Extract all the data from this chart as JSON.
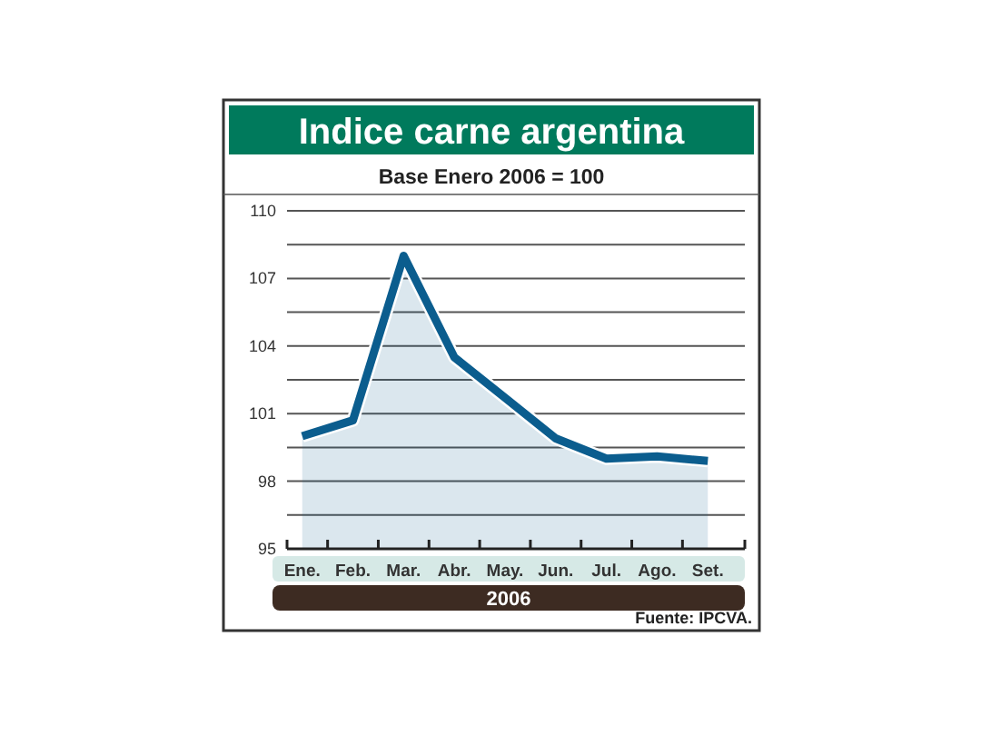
{
  "chart_data": {
    "type": "area",
    "title": "Indice carne argentina",
    "subtitle": "Base Enero 2006 = 100",
    "xlabel": "2006",
    "categories": [
      "Ene.",
      "Feb.",
      "Mar.",
      "Abr.",
      "May.",
      "Jun.",
      "Jul.",
      "Ago.",
      "Set."
    ],
    "series": [
      {
        "color": "#0b5d8e",
        "values": [
          100.0,
          100.7,
          108.0,
          103.5,
          101.7,
          99.9,
          99.0,
          99.1,
          98.9
        ]
      }
    ],
    "ylim": [
      95,
      110
    ],
    "yticks": [
      95,
      {
        "value": 96.5,
        "label": null
      },
      98,
      {
        "value": 99.5,
        "label": null
      },
      101,
      {
        "value": 102.5,
        "label": null
      },
      104,
      {
        "value": 105.5,
        "label": null
      },
      107,
      {
        "value": 108.5,
        "label": null
      },
      110
    ],
    "grid": "y",
    "annotations": [
      "Fuente: IPCVA."
    ]
  }
}
